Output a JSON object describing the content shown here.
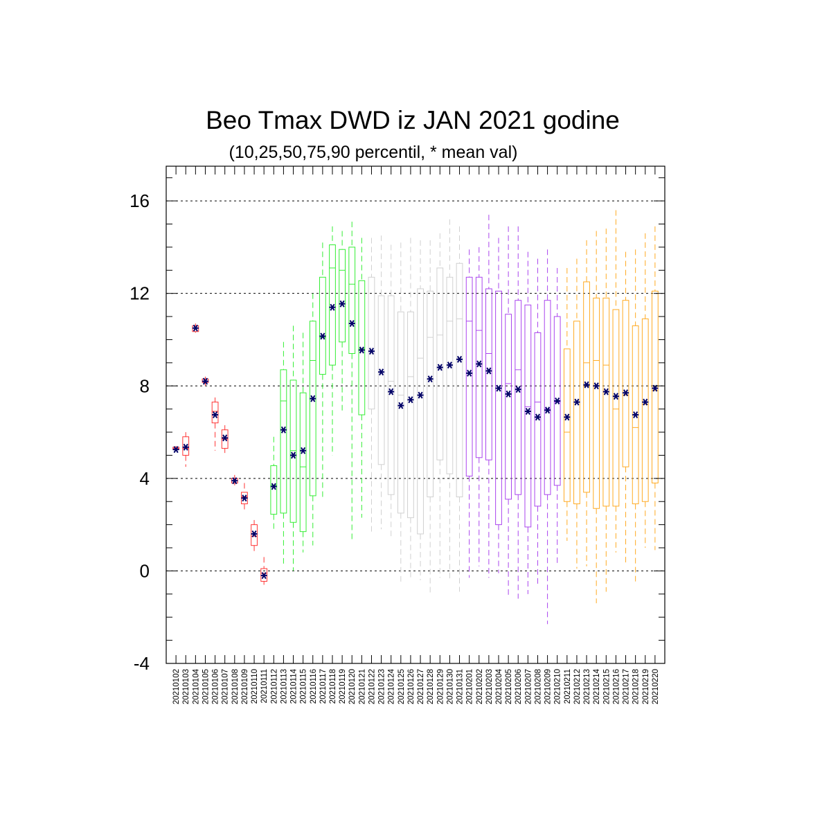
{
  "chart_data": {
    "type": "box",
    "title": "Beo Tmax DWD iz JAN 2021 godine",
    "subtitle": "(10,25,50,75,90 percentil, * mean val)",
    "ylim": [
      -4,
      17.5
    ],
    "yticks": [
      -4,
      0,
      4,
      8,
      12,
      16
    ],
    "grid": "dashed horizontal at labeled y ticks",
    "mean_marker_color": "#000066",
    "colors": {
      "red": "#ff3333",
      "green": "#33ee33",
      "gray": "#d0d0d0",
      "purple": "#aa44ee",
      "orange": "#ffaa22"
    },
    "categories": [
      "20210102",
      "20210103",
      "20210104",
      "20210105",
      "20210106",
      "20210107",
      "20210108",
      "20210109",
      "20210110",
      "20210111",
      "20210112",
      "20210113",
      "20210114",
      "20210115",
      "20210116",
      "20210117",
      "20210118",
      "20210119",
      "20210120",
      "20210121",
      "20210122",
      "20210123",
      "20210124",
      "20210125",
      "20210126",
      "20210127",
      "20210128",
      "20210129",
      "20210130",
      "20210131",
      "20210201",
      "20210202",
      "20210203",
      "20210204",
      "20210205",
      "20210206",
      "20210207",
      "20210208",
      "20210209",
      "20210210",
      "20210211",
      "20210212",
      "20210213",
      "20210214",
      "20210215",
      "20210216",
      "20210217",
      "20210218",
      "20210219",
      "20210220"
    ],
    "boxes": [
      {
        "p10": 5.2,
        "p25": 5.25,
        "p50": 5.3,
        "p75": 5.35,
        "p90": 5.4,
        "mean": 5.25,
        "color": "red"
      },
      {
        "p10": 4.5,
        "p25": 5.0,
        "p50": 5.3,
        "p75": 5.8,
        "p90": 6.0,
        "mean": 5.35,
        "color": "red"
      },
      {
        "p10": 10.3,
        "p25": 10.35,
        "p50": 10.5,
        "p75": 10.6,
        "p90": 10.7,
        "mean": 10.5,
        "color": "red"
      },
      {
        "p10": 8.0,
        "p25": 8.15,
        "p50": 8.2,
        "p75": 8.3,
        "p90": 8.4,
        "mean": 8.2,
        "color": "red"
      },
      {
        "p10": 5.2,
        "p25": 6.4,
        "p50": 6.9,
        "p75": 7.3,
        "p90": 7.5,
        "mean": 6.75,
        "color": "red"
      },
      {
        "p10": 5.1,
        "p25": 5.3,
        "p50": 5.7,
        "p75": 6.1,
        "p90": 6.3,
        "mean": 5.75,
        "color": "red"
      },
      {
        "p10": 3.7,
        "p25": 3.8,
        "p50": 3.9,
        "p75": 4.0,
        "p90": 4.15,
        "mean": 3.9,
        "color": "red"
      },
      {
        "p10": 2.6,
        "p25": 2.9,
        "p50": 3.2,
        "p75": 3.4,
        "p90": 3.8,
        "mean": 3.15,
        "color": "red"
      },
      {
        "p10": 0.8,
        "p25": 1.1,
        "p50": 1.5,
        "p75": 2.0,
        "p90": 2.2,
        "mean": 1.6,
        "color": "red"
      },
      {
        "p10": -0.6,
        "p25": -0.45,
        "p50": -0.1,
        "p75": 0.1,
        "p90": 0.6,
        "mean": -0.2,
        "color": "red"
      },
      {
        "p10": 1.8,
        "p25": 2.45,
        "p50": 3.7,
        "p75": 4.55,
        "p90": 5.8,
        "mean": 3.65,
        "color": "green"
      },
      {
        "p10": 0.2,
        "p25": 2.5,
        "p50": 7.35,
        "p75": 8.7,
        "p90": 9.9,
        "mean": 6.1,
        "color": "green"
      },
      {
        "p10": 0.0,
        "p25": 2.1,
        "p50": 5.2,
        "p75": 8.25,
        "p90": 10.6,
        "mean": 5.0,
        "color": "green"
      },
      {
        "p10": 0.8,
        "p25": 1.7,
        "p50": 4.5,
        "p75": 7.7,
        "p90": 10.3,
        "mean": 5.2,
        "color": "green"
      },
      {
        "p10": 1.1,
        "p25": 3.25,
        "p50": 9.1,
        "p75": 10.8,
        "p90": 12.0,
        "mean": 7.45,
        "color": "green"
      },
      {
        "p10": 3.2,
        "p25": 8.5,
        "p50": 10.1,
        "p75": 12.7,
        "p90": 14.2,
        "mean": 10.15,
        "color": "green"
      },
      {
        "p10": 5.0,
        "p25": 8.9,
        "p50": 13.1,
        "p75": 14.1,
        "p90": 14.9,
        "mean": 11.4,
        "color": "green"
      },
      {
        "p10": 6.8,
        "p25": 9.9,
        "p50": 13.0,
        "p75": 13.9,
        "p90": 14.7,
        "mean": 11.55,
        "color": "green"
      },
      {
        "p10": 1.3,
        "p25": 9.4,
        "p50": 12.4,
        "p75": 14.0,
        "p90": 15.1,
        "mean": 10.7,
        "color": "green"
      },
      {
        "p10": 2.3,
        "p25": 6.75,
        "p50": 9.6,
        "p75": 12.55,
        "p90": 14.4,
        "mean": 9.55,
        "color": "green"
      },
      {
        "p10": 1.7,
        "p25": 7.0,
        "p50": 9.5,
        "p75": 12.7,
        "p90": 14.4,
        "mean": 9.5,
        "color": "gray"
      },
      {
        "p10": 1.8,
        "p25": 4.6,
        "p50": 8.6,
        "p75": 11.9,
        "p90": 14.5,
        "mean": 8.6,
        "color": "gray"
      },
      {
        "p10": 1.5,
        "p25": 3.3,
        "p50": 8.2,
        "p75": 11.9,
        "p90": 14.1,
        "mean": 7.75,
        "color": "gray"
      },
      {
        "p10": -0.5,
        "p25": 2.5,
        "p50": 7.6,
        "p75": 11.2,
        "p90": 14.2,
        "mean": 7.15,
        "color": "gray"
      },
      {
        "p10": -0.4,
        "p25": 2.3,
        "p50": 8.4,
        "p75": 11.2,
        "p90": 14.4,
        "mean": 7.4,
        "color": "gray"
      },
      {
        "p10": -0.4,
        "p25": 1.6,
        "p50": 9.2,
        "p75": 12.2,
        "p90": 14.3,
        "mean": 7.6,
        "color": "gray"
      },
      {
        "p10": -1.0,
        "p25": 3.2,
        "p50": 10.1,
        "p75": 12.1,
        "p90": 14.3,
        "mean": 8.3,
        "color": "gray"
      },
      {
        "p10": -0.3,
        "p25": 4.8,
        "p50": 10.2,
        "p75": 13.1,
        "p90": 14.6,
        "mean": 8.8,
        "color": "gray"
      },
      {
        "p10": -0.4,
        "p25": 4.2,
        "p50": 10.8,
        "p75": 12.7,
        "p90": 15.2,
        "mean": 8.9,
        "color": "gray"
      },
      {
        "p10": -0.9,
        "p25": 3.2,
        "p50": 10.9,
        "p75": 13.3,
        "p90": 14.9,
        "mean": 9.15,
        "color": "gray"
      },
      {
        "p10": -0.3,
        "p25": 4.1,
        "p50": 10.8,
        "p75": 12.7,
        "p90": 13.9,
        "mean": 8.55,
        "color": "purple"
      },
      {
        "p10": 0.2,
        "p25": 4.9,
        "p50": 10.4,
        "p75": 12.7,
        "p90": 14.0,
        "mean": 8.95,
        "color": "purple"
      },
      {
        "p10": -0.3,
        "p25": 4.8,
        "p50": 9.4,
        "p75": 12.2,
        "p90": 15.4,
        "mean": 8.65,
        "color": "purple"
      },
      {
        "p10": -0.1,
        "p25": 2.0,
        "p50": 7.9,
        "p75": 12.1,
        "p90": 14.4,
        "mean": 7.9,
        "color": "purple"
      },
      {
        "p10": -1.1,
        "p25": 3.1,
        "p50": 8.1,
        "p75": 11.1,
        "p90": 14.9,
        "mean": 7.65,
        "color": "purple"
      },
      {
        "p10": -1.2,
        "p25": 3.3,
        "p50": 8.7,
        "p75": 11.7,
        "p90": 14.9,
        "mean": 7.85,
        "color": "purple"
      },
      {
        "p10": -1.0,
        "p25": 1.9,
        "p50": 7.1,
        "p75": 11.5,
        "p90": 13.8,
        "mean": 6.9,
        "color": "purple"
      },
      {
        "p10": -0.6,
        "p25": 2.8,
        "p50": 7.3,
        "p75": 10.3,
        "p90": 13.5,
        "mean": 6.65,
        "color": "purple"
      },
      {
        "p10": -2.3,
        "p25": 3.3,
        "p50": 7.0,
        "p75": 11.7,
        "p90": 13.9,
        "mean": 6.95,
        "color": "purple"
      },
      {
        "p10": 0.2,
        "p25": 3.7,
        "p50": 7.3,
        "p75": 11.0,
        "p90": 13.1,
        "mean": 7.35,
        "color": "purple"
      },
      {
        "p10": 1.3,
        "p25": 3.0,
        "p50": 6.0,
        "p75": 9.6,
        "p90": 13.1,
        "mean": 6.65,
        "color": "orange"
      },
      {
        "p10": 0.1,
        "p25": 2.9,
        "p50": 7.3,
        "p75": 10.8,
        "p90": 13.5,
        "mean": 7.3,
        "color": "orange"
      },
      {
        "p10": 0.2,
        "p25": 3.4,
        "p50": 9.0,
        "p75": 12.5,
        "p90": 14.3,
        "mean": 8.05,
        "color": "orange"
      },
      {
        "p10": -1.4,
        "p25": 2.7,
        "p50": 9.1,
        "p75": 11.8,
        "p90": 14.7,
        "mean": 8.0,
        "color": "orange"
      },
      {
        "p10": -0.9,
        "p25": 2.8,
        "p50": 8.9,
        "p75": 11.8,
        "p90": 14.8,
        "mean": 7.75,
        "color": "orange"
      },
      {
        "p10": 0.8,
        "p25": 2.8,
        "p50": 7.0,
        "p75": 11.3,
        "p90": 15.6,
        "mean": 7.55,
        "color": "orange"
      },
      {
        "p10": 0.3,
        "p25": 4.5,
        "p50": 7.6,
        "p75": 11.7,
        "p90": 13.8,
        "mean": 7.7,
        "color": "orange"
      },
      {
        "p10": -0.6,
        "p25": 2.9,
        "p50": 6.2,
        "p75": 10.6,
        "p90": 13.9,
        "mean": 6.75,
        "color": "orange"
      },
      {
        "p10": 1.0,
        "p25": 3.0,
        "p50": 7.2,
        "p75": 10.9,
        "p90": 14.6,
        "mean": 7.3,
        "color": "orange"
      },
      {
        "p10": 0.9,
        "p25": 3.8,
        "p50": 7.8,
        "p75": 12.1,
        "p90": 14.9,
        "mean": 7.9,
        "color": "orange"
      }
    ]
  }
}
